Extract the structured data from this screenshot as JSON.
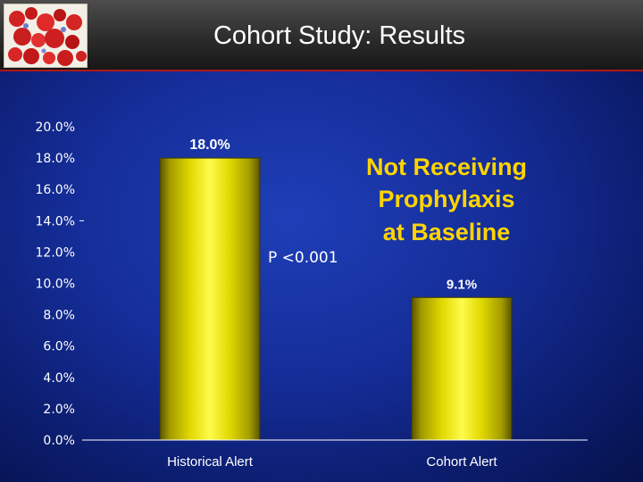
{
  "slide": {
    "title": "Cohort Study: Results",
    "colors": {
      "bar_fill": "#e8e000",
      "heading": "#ffd400",
      "accent_line": "#b01818"
    }
  },
  "chart_data": {
    "type": "bar",
    "categories": [
      "Historical Alert",
      "Cohort Alert"
    ],
    "values": [
      18.0,
      9.1
    ],
    "data_labels": [
      "18.0%",
      "9.1%"
    ],
    "y_ticks": [
      "0.0%",
      "2.0%",
      "4.0%",
      "6.0%",
      "8.0%",
      "10.0%",
      "12.0%",
      "14.0%",
      "16.0%",
      "18.0%",
      "20.0%"
    ],
    "ylim": [
      0,
      20
    ],
    "title": "",
    "xlabel": "",
    "ylabel": "",
    "grid": false,
    "annotations": {
      "p_value": "P <0.001",
      "heading_lines": [
        "Not Receiving",
        "Prophylaxis",
        "at Baseline"
      ]
    }
  }
}
